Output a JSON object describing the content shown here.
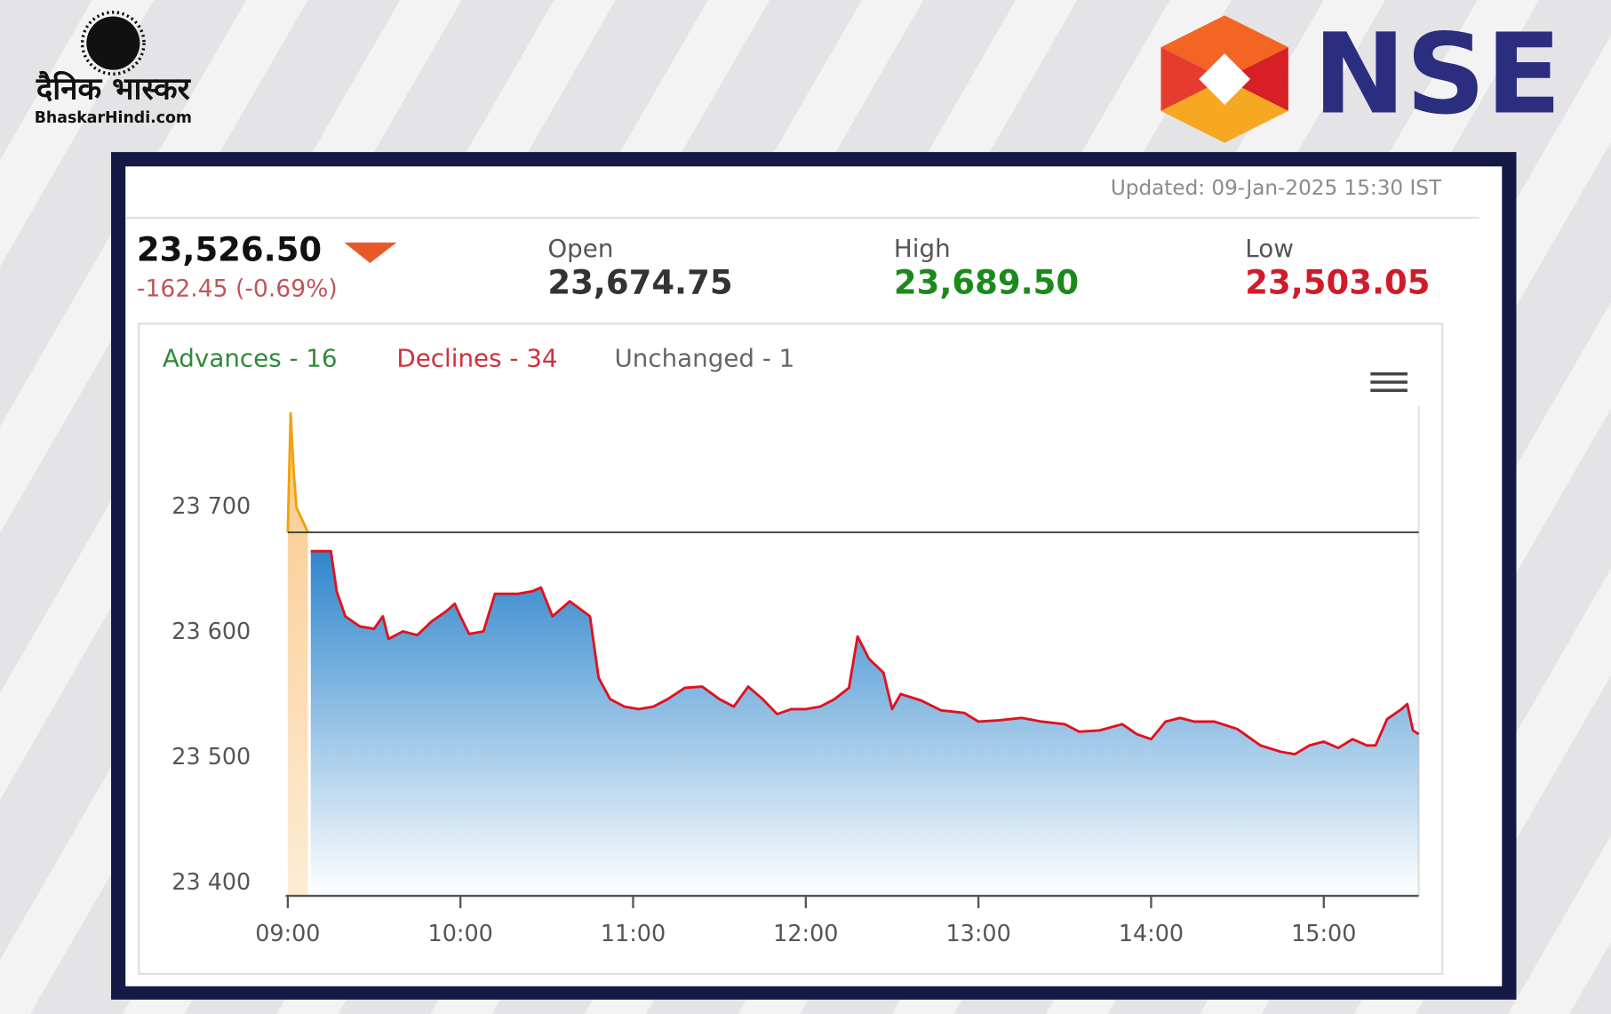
{
  "branding": {
    "publisher": "दैनिक भास्कर",
    "site": "BhaskarHindi.com",
    "exchange": "NSE"
  },
  "updated": "Updated: 09-Jan-2025 15:30 IST",
  "quote": {
    "last": "23,526.50",
    "change": "-162.45 (-0.69%)"
  },
  "stats": [
    {
      "label": "Open",
      "value": "23,674.75"
    },
    {
      "label": "High",
      "value": "23,689.50"
    },
    {
      "label": "Low",
      "value": "23,503.05"
    }
  ],
  "chart_data": {
    "type": "area",
    "breadth": [
      "Advances - 16",
      "Declines - 34",
      "Unchanged - 1"
    ],
    "xlim": [
      "09:00",
      "15:33"
    ],
    "xticks": [
      "09:00",
      "10:00",
      "11:00",
      "12:00",
      "13:00",
      "14:00",
      "15:00"
    ],
    "ylim": [
      23390,
      23790
    ],
    "yticks": [
      {
        "value": 23400,
        "label": "23 400"
      },
      {
        "value": 23500,
        "label": "23 500"
      },
      {
        "value": 23600,
        "label": "23 600"
      },
      {
        "value": 23700,
        "label": "23 700"
      }
    ],
    "reference_line": 23680,
    "series": [
      {
        "color": "#f0a30a",
        "fill_color": "#f9c98a",
        "x": [
          "09:00",
          "09:01",
          "09:02",
          "09:03",
          "09:05",
          "09:06",
          "09:07"
        ],
        "values": [
          23680,
          23775,
          23730,
          23700,
          23690,
          23685,
          23680
        ]
      },
      {
        "color": "#e0121f",
        "fill_color": "#2f86cc",
        "x": [
          "09:08",
          "09:15",
          "09:17",
          "09:20",
          "09:25",
          "09:30",
          "09:33",
          "09:35",
          "09:40",
          "09:45",
          "09:50",
          "09:55",
          "09:58",
          "10:00",
          "10:03",
          "10:08",
          "10:12",
          "10:20",
          "10:25",
          "10:28",
          "10:32",
          "10:38",
          "10:45",
          "10:48",
          "10:52",
          "10:57",
          "11:02",
          "11:07",
          "11:12",
          "11:18",
          "11:24",
          "11:30",
          "11:35",
          "11:40",
          "11:45",
          "11:50",
          "11:55",
          "12:00",
          "12:05",
          "12:10",
          "12:15",
          "12:18",
          "12:22",
          "12:27",
          "12:30",
          "12:33",
          "12:40",
          "12:47",
          "12:55",
          "13:00",
          "13:07",
          "13:15",
          "13:22",
          "13:30",
          "13:35",
          "13:42",
          "13:50",
          "13:55",
          "14:00",
          "14:05",
          "14:10",
          "14:15",
          "14:22",
          "14:30",
          "14:38",
          "14:45",
          "14:50",
          "14:55",
          "15:00",
          "15:05",
          "15:10",
          "15:15",
          "15:18",
          "15:22",
          "15:27",
          "15:29",
          "15:31",
          "15:33"
        ],
        "values": [
          23665,
          23665,
          23633,
          23613,
          23605,
          23603,
          23613,
          23595,
          23601,
          23598,
          23609,
          23617,
          23623,
          23613,
          23599,
          23601,
          23631,
          23631,
          23633,
          23636,
          23613,
          23625,
          23613,
          23564,
          23547,
          23541,
          23539,
          23541,
          23547,
          23556,
          23557,
          23547,
          23541,
          23557,
          23547,
          23535,
          23539,
          23539,
          23541,
          23547,
          23556,
          23597,
          23579,
          23568,
          23539,
          23551,
          23546,
          23538,
          23536,
          23529,
          23530,
          23532,
          23529,
          23527,
          23521,
          23522,
          23527,
          23519,
          23515,
          23529,
          23532,
          23529,
          23529,
          23523,
          23510,
          23505,
          23503,
          23510,
          23513,
          23508,
          23515,
          23510,
          23510,
          23531,
          23539,
          23543,
          23522,
          23519
        ]
      }
    ]
  }
}
